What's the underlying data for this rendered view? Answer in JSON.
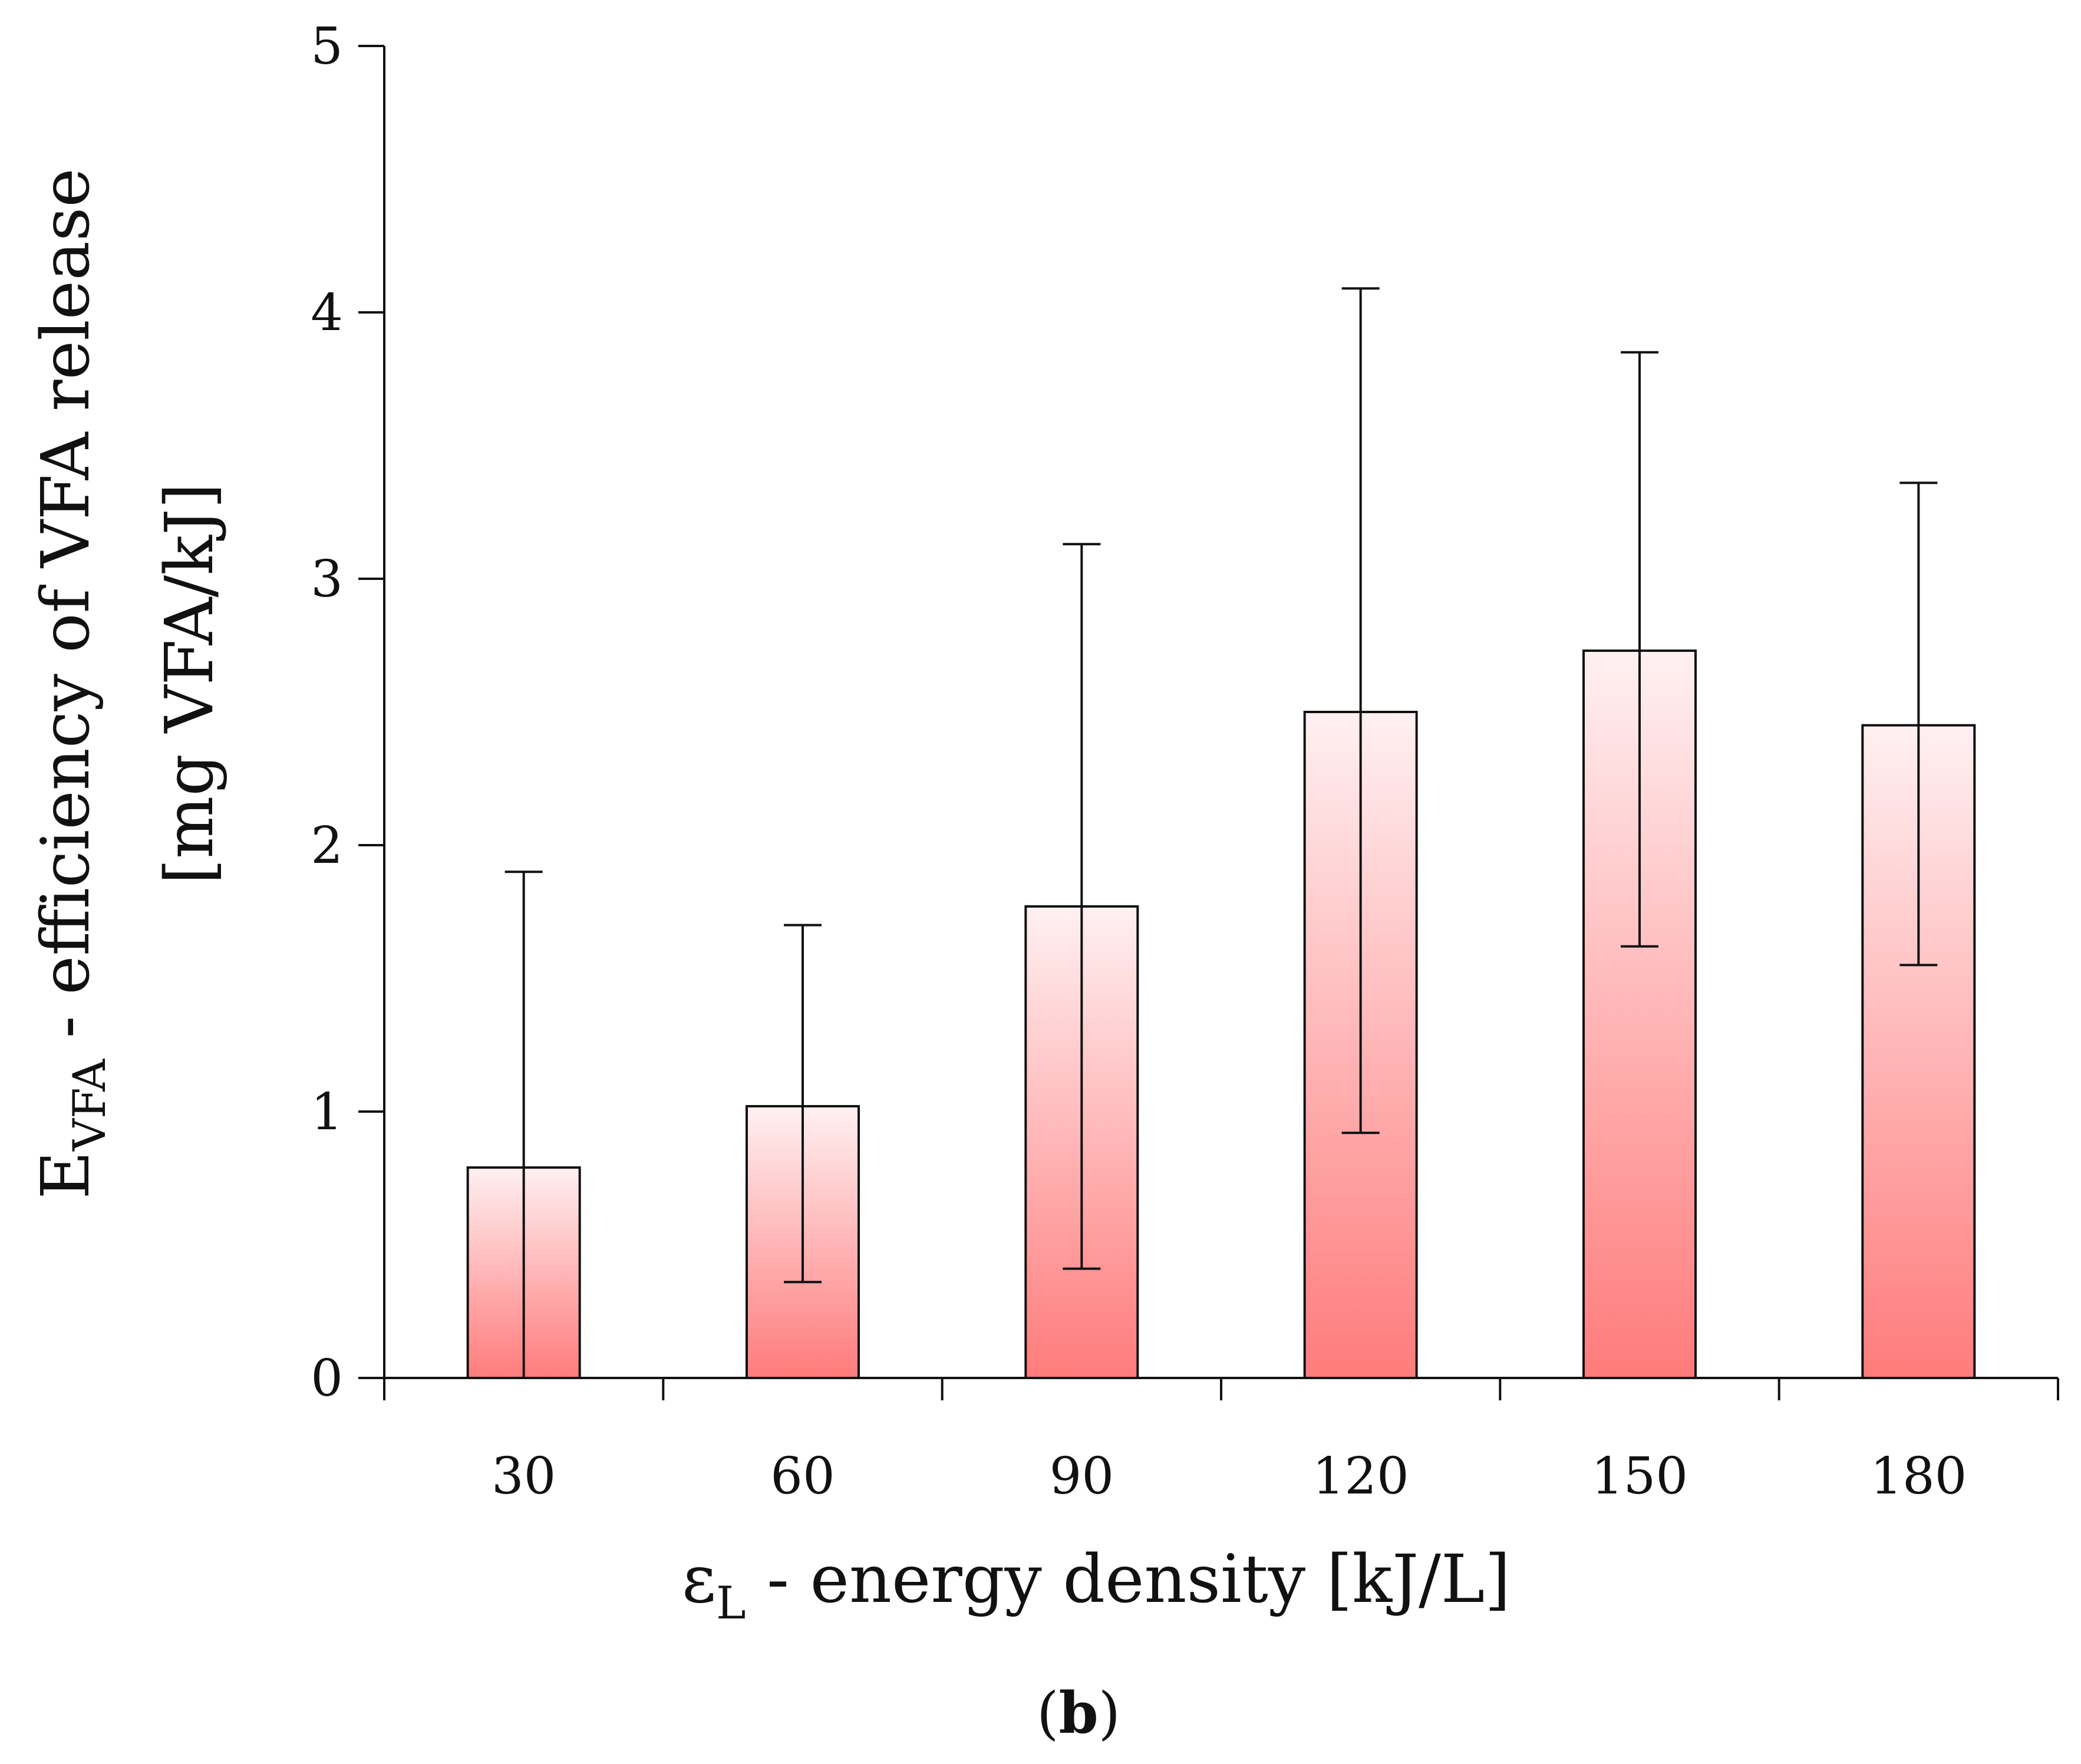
{
  "chart_data": {
    "type": "bar",
    "categories": [
      "30",
      "60",
      "90",
      "120",
      "150",
      "180"
    ],
    "values": [
      0.79,
      1.02,
      1.77,
      2.5,
      2.73,
      2.45
    ],
    "error_upper": [
      1.9,
      1.7,
      3.13,
      4.09,
      3.85,
      3.36
    ],
    "error_lower": [
      0.0,
      0.36,
      0.41,
      0.92,
      1.62,
      1.55
    ],
    "ylim": [
      0,
      5
    ],
    "yticks": [
      "0",
      "1",
      "2",
      "3",
      "4",
      "5"
    ],
    "xlabel": {
      "symbol": "ε",
      "subscript": "L",
      "text": " - energy density [kJ/L]"
    },
    "ylabel": {
      "symbol": "E",
      "subscript": "VFA",
      "line1": " - efficiency of VFA release",
      "line2": "[mg VFA/kJ]"
    },
    "panel_label": {
      "open": "(",
      "letter": "b",
      "close": ")"
    },
    "grid": false,
    "bar_gradient": {
      "top": "#fff0f2",
      "bottom": "#ff7b7b"
    },
    "bar_edge": "#111111"
  }
}
